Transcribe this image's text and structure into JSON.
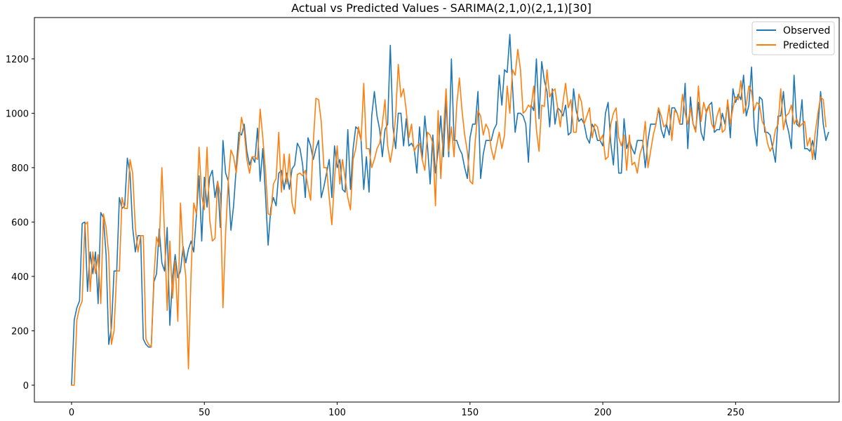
{
  "chart_data": {
    "type": "line",
    "title": "Actual vs Predicted Values - SARIMA(2,1,0)(2,1,1)[30]",
    "xlabel": "",
    "ylabel": "",
    "xlim": [
      -14,
      289
    ],
    "ylim": [
      -62,
      1352
    ],
    "x_ticks": [
      0,
      50,
      100,
      150,
      200,
      250
    ],
    "y_ticks": [
      0,
      200,
      400,
      600,
      800,
      1000,
      1200
    ],
    "grid": false,
    "legend_position": "top-right",
    "series": [
      {
        "name": "Observed",
        "color": "#1f77b4",
        "x_start": 0,
        "values": [
          0,
          240,
          285,
          310,
          595,
          600,
          345,
          490,
          410,
          490,
          300,
          635,
          615,
          480,
          150,
          210,
          420,
          420,
          690,
          650,
          660,
          835,
          780,
          580,
          490,
          550,
          550,
          170,
          150,
          140,
          140,
          380,
          410,
          575,
          450,
          420,
          580,
          220,
          395,
          480,
          395,
          420,
          510,
          450,
          500,
          530,
          490,
          625,
          770,
          530,
          765,
          655,
          765,
          790,
          690,
          750,
          580,
          900,
          780,
          750,
          570,
          660,
          800,
          930,
          920,
          960,
          860,
          810,
          840,
          820,
          945,
          750,
          870,
          700,
          515,
          650,
          690,
          660,
          780,
          790,
          720,
          780,
          720,
          795,
          810,
          890,
          870,
          810,
          690,
          910,
          880,
          830,
          870,
          900,
          690,
          730,
          780,
          830,
          690,
          880,
          800,
          830,
          720,
          710,
          940,
          720,
          870,
          950,
          940,
          900,
          720,
          840,
          710,
          990,
          1080,
          990,
          940,
          840,
          940,
          960,
          1250,
          950,
          870,
          1000,
          1000,
          880,
          980,
          880,
          890,
          870,
          780,
          950,
          830,
          990,
          880,
          740,
          920,
          780,
          860,
          990,
          840,
          1050,
          840,
          1200,
          900,
          900,
          870,
          850,
          800,
          760,
          910,
          960,
          960,
          1080,
          760,
          850,
          900,
          900,
          900,
          940,
          960,
          1140,
          1030,
          1160,
          1150,
          1290,
          1100,
          930,
          1000,
          1000,
          990,
          960,
          820,
          1030,
          1010,
          1200,
          980,
          1190,
          1120,
          1080,
          950,
          1090,
          960,
          1020,
          1010,
          990,
          1030,
          920,
          930,
          1090,
          1010,
          970,
          980,
          960,
          910,
          890,
          960,
          940,
          900,
          900,
          880,
          1000,
          1040,
          890,
          810,
          970,
          780,
          780,
          980,
          870,
          900,
          870,
          850,
          900,
          900,
          900,
          800,
          900,
          960,
          960,
          960,
          1020,
          940,
          910,
          960,
          920,
          1020,
          1020,
          1000,
          960,
          960,
          1110,
          870,
          1060,
          960,
          940,
          1040,
          930,
          900,
          1010,
          1030,
          1040,
          930,
          940,
          940,
          1000,
          960,
          1040,
          910,
          1090,
          1040,
          1070,
          1050,
          1140,
          990,
          1030,
          1170,
          950,
          880,
          1060,
          1050,
          930,
          930,
          920,
          870,
          820,
          990,
          990,
          1080,
          970,
          930,
          870,
          1140,
          960,
          950,
          1050,
          870,
          870,
          860,
          900,
          830,
          950,
          1080,
          960,
          900,
          930
        ]
      },
      {
        "name": "Predicted",
        "color": "#ff7f0e",
        "x_start": 0,
        "values": [
          0,
          0,
          240,
          285,
          310,
          590,
          600,
          345,
          490,
          410,
          480,
          300,
          630,
          580,
          480,
          150,
          200,
          420,
          420,
          690,
          650,
          650,
          830,
          780,
          580,
          490,
          550,
          550,
          170,
          150,
          140,
          400,
          545,
          510,
          800,
          560,
          275,
          530,
          320,
          460,
          235,
          670,
          490,
          400,
          60,
          410,
          670,
          630,
          875,
          695,
          645,
          875,
          610,
          530,
          540,
          750,
          700,
          285,
          560,
          750,
          865,
          840,
          780,
          880,
          985,
          935,
          830,
          780,
          840,
          840,
          830,
          1015,
          910,
          790,
          630,
          625,
          740,
          760,
          930,
          710,
          850,
          740,
          850,
          670,
          630,
          775,
          780,
          770,
          790,
          730,
          680,
          890,
          1055,
          1050,
          970,
          800,
          800,
          690,
          590,
          760,
          880,
          740,
          830,
          760,
          690,
          645,
          830,
          870,
          950,
          900,
          1110,
          870,
          870,
          800,
          830,
          870,
          890,
          960,
          1050,
          880,
          820,
          880,
          990,
          1180,
          1060,
          1090,
          1010,
          910,
          960,
          860,
          880,
          890,
          830,
          790,
          930,
          920,
          890,
          660,
          1010,
          760,
          930,
          1090,
          860,
          950,
          840,
          1030,
          1130,
          1010,
          920,
          860,
          750,
          740,
          900,
          1010,
          990,
          920,
          960,
          940,
          870,
          830,
          880,
          930,
          870,
          920,
          1100,
          1000,
          1160,
          1140,
          1235,
          1160,
          1000,
          1010,
          1030,
          1020,
          1100,
          940,
          860,
          1030,
          1025,
          1160,
          1060,
          1080,
          1090,
          1020,
          950,
          1040,
          1110,
          1020,
          1050,
          930,
          930,
          1070,
          1040,
          960,
          990,
          1020,
          910,
          960,
          950,
          900,
          920,
          830,
          840,
          960,
          1000,
          1020,
          910,
          880,
          920,
          790,
          920,
          810,
          820,
          780,
          850,
          880,
          970,
          800,
          860,
          920,
          960,
          1020,
          990,
          950,
          960,
          1030,
          900,
          1010,
          1000,
          960,
          1070,
          1000,
          960,
          1020,
          960,
          930,
          1100,
          970,
          1040,
          1000,
          1030,
          960,
          940,
          990,
          1020,
          930,
          940,
          1050,
          960,
          1020,
          1060,
          1050,
          1120,
          1000,
          1030,
          1100,
          1080,
          1010,
          1040,
          1030,
          970,
          950,
          890,
          860,
          880,
          940,
          960,
          1090,
          940,
          990,
          1000,
          1030,
          960,
          980,
          950,
          960,
          970,
          880,
          910,
          830,
          930,
          1000,
          1060,
          1050,
          950
        ]
      }
    ]
  }
}
